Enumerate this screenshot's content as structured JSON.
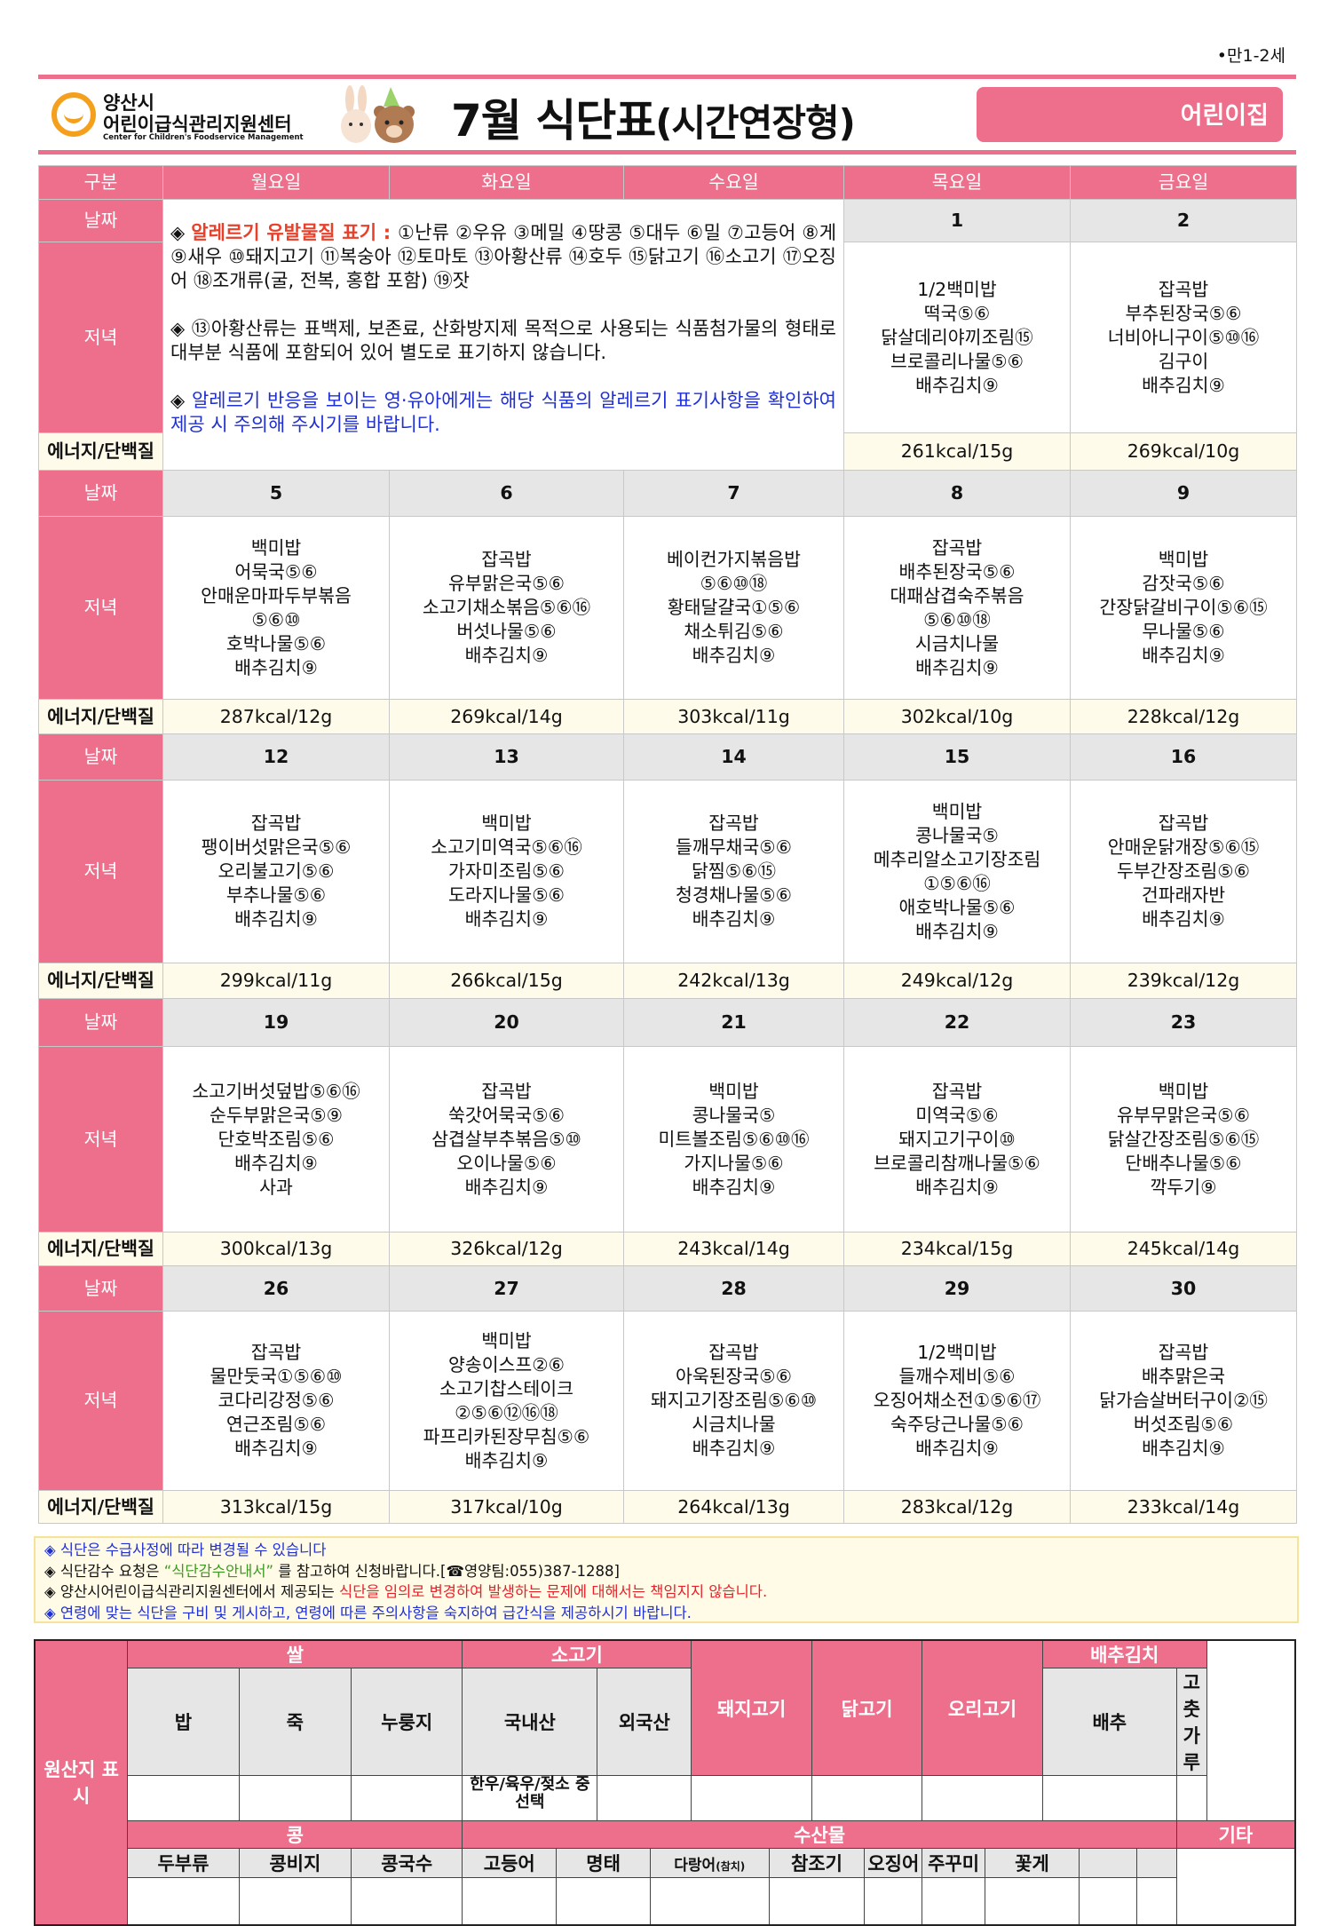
{
  "header": {
    "age": "•만1-2세",
    "org_name_1": "양산시",
    "org_name_2": "어린이급식관리지원센터",
    "org_name_en": "Center for Children's Foodservice Management",
    "title_main": "7월 식단표",
    "title_sub": "(시간연장형)",
    "badge": "어린이집",
    "accent": "#ee6f8c"
  },
  "table": {
    "columns": [
      "구분",
      "월요일",
      "화요일",
      "수요일",
      "목요일",
      "금요일"
    ],
    "row_labels": {
      "date": "날짜",
      "dinner": "저녁",
      "energy": "에너지/단백질"
    },
    "allergy": {
      "p1_prefix": "◈ ",
      "p1_label": "알레르기 유발물질 표기 : ",
      "p1_text": "①난류 ②우유 ③메밀 ④땅콩 ⑤대두 ⑥밀 ⑦고등어 ⑧게 ⑨새우 ⑩돼지고기 ⑪복숭아 ⑫토마토 ⑬아황산류 ⑭호두 ⑮닭고기 ⑯소고기 ⑰오징어 ⑱조개류(굴, 전복, 홍합 포함) ⑲잣",
      "p2": "◈ ⑬아황산류는 표백제, 보존료, 산화방지제 목적으로 사용되는 식품첨가물의 형태로 대부분 식품에 포함되어 있어 별도로 표기하지 않습니다.",
      "p3_prefix": "◈ ",
      "p3": "알레르기 반응을 보이는 영·유아에게는 해당 식품의 알레르기 표기사항을 확인하여 제공 시 주의해 주시기를 바랍니다."
    },
    "weeks": [
      {
        "days": [
          null,
          null,
          null,
          {
            "date": "1",
            "menu": [
              "1/2백미밥",
              "떡국⑤⑥",
              "닭살데리야끼조림⑮",
              "브로콜리나물⑤⑥",
              "배추김치⑨"
            ],
            "energy": "261kcal/15g"
          },
          {
            "date": "2",
            "menu": [
              "잡곡밥",
              "부추된장국⑤⑥",
              "너비아니구이⑤⑩⑯",
              "김구이",
              "배추김치⑨"
            ],
            "energy": "269kcal/10g"
          }
        ]
      },
      {
        "days": [
          {
            "date": "5",
            "menu": [
              "백미밥",
              "어묵국⑤⑥",
              "안매운마파두부볶음",
              "⑤⑥⑩",
              "호박나물⑤⑥",
              "배추김치⑨"
            ],
            "energy": "287kcal/12g"
          },
          {
            "date": "6",
            "menu": [
              "잡곡밥",
              "유부맑은국⑤⑥",
              "소고기채소볶음⑤⑥⑯",
              "버섯나물⑤⑥",
              "배추김치⑨"
            ],
            "energy": "269kcal/14g"
          },
          {
            "date": "7",
            "menu": [
              "베이컨가지볶음밥",
              "⑤⑥⑩⑱",
              "황태달걀국①⑤⑥",
              "채소튀김⑤⑥",
              "배추김치⑨"
            ],
            "energy": "303kcal/11g"
          },
          {
            "date": "8",
            "menu": [
              "잡곡밥",
              "배추된장국⑤⑥",
              "대패삼겹숙주볶음",
              "⑤⑥⑩⑱",
              "시금치나물",
              "배추김치⑨"
            ],
            "energy": "302kcal/10g"
          },
          {
            "date": "9",
            "menu": [
              "백미밥",
              "감잣국⑤⑥",
              "간장닭갈비구이⑤⑥⑮",
              "무나물⑤⑥",
              "배추김치⑨"
            ],
            "energy": "228kcal/12g"
          }
        ]
      },
      {
        "days": [
          {
            "date": "12",
            "menu": [
              "잡곡밥",
              "팽이버섯맑은국⑤⑥",
              "오리불고기⑤⑥",
              "부추나물⑤⑥",
              "배추김치⑨"
            ],
            "energy": "299kcal/11g"
          },
          {
            "date": "13",
            "menu": [
              "백미밥",
              "소고기미역국⑤⑥⑯",
              "가자미조림⑤⑥",
              "도라지나물⑤⑥",
              "배추김치⑨"
            ],
            "energy": "266kcal/15g"
          },
          {
            "date": "14",
            "menu": [
              "잡곡밥",
              "들깨무채국⑤⑥",
              "닭찜⑤⑥⑮",
              "청경채나물⑤⑥",
              "배추김치⑨"
            ],
            "energy": "242kcal/13g"
          },
          {
            "date": "15",
            "menu": [
              "백미밥",
              "콩나물국⑤",
              "메추리알소고기장조림",
              "①⑤⑥⑯",
              "애호박나물⑤⑥",
              "배추김치⑨"
            ],
            "energy": "249kcal/12g"
          },
          {
            "date": "16",
            "menu": [
              "잡곡밥",
              "안매운닭개장⑤⑥⑮",
              "두부간장조림⑤⑥",
              "건파래자반",
              "배추김치⑨"
            ],
            "energy": "239kcal/12g"
          }
        ]
      },
      {
        "days": [
          {
            "date": "19",
            "menu": [
              "소고기버섯덮밥⑤⑥⑯",
              "순두부맑은국⑤⑨",
              "단호박조림⑤⑥",
              "배추김치⑨",
              "사과"
            ],
            "energy": "300kcal/13g"
          },
          {
            "date": "20",
            "menu": [
              "잡곡밥",
              "쑥갓어묵국⑤⑥",
              "삼겹살부추볶음⑤⑩",
              "오이나물⑤⑥",
              "배추김치⑨"
            ],
            "energy": "326kcal/12g"
          },
          {
            "date": "21",
            "menu": [
              "백미밥",
              "콩나물국⑤",
              "미트볼조림⑤⑥⑩⑯",
              "가지나물⑤⑥",
              "배추김치⑨"
            ],
            "energy": "243kcal/14g"
          },
          {
            "date": "22",
            "menu": [
              "잡곡밥",
              "미역국⑤⑥",
              "돼지고기구이⑩",
              "브로콜리참깨나물⑤⑥",
              "배추김치⑨"
            ],
            "energy": "234kcal/15g"
          },
          {
            "date": "23",
            "menu": [
              "백미밥",
              "유부무맑은국⑤⑥",
              "닭살간장조림⑤⑥⑮",
              "단배추나물⑤⑥",
              "깍두기⑨"
            ],
            "energy": "245kcal/14g"
          }
        ]
      },
      {
        "days": [
          {
            "date": "26",
            "menu": [
              "잡곡밥",
              "물만둣국①⑤⑥⑩",
              "코다리강정⑤⑥",
              "연근조림⑤⑥",
              "배추김치⑨"
            ],
            "energy": "313kcal/15g"
          },
          {
            "date": "27",
            "menu": [
              "백미밥",
              "양송이스프②⑥",
              "소고기찹스테이크",
              "②⑤⑥⑫⑯⑱",
              "파프리카된장무침⑤⑥",
              "배추김치⑨"
            ],
            "energy": "317kcal/10g"
          },
          {
            "date": "28",
            "menu": [
              "잡곡밥",
              "아욱된장국⑤⑥",
              "돼지고기장조림⑤⑥⑩",
              "시금치나물",
              "배추김치⑨"
            ],
            "energy": "264kcal/13g"
          },
          {
            "date": "29",
            "menu": [
              "1/2백미밥",
              "들깨수제비⑤⑥",
              "오징어채소전①⑤⑥⑰",
              "숙주당근나물⑤⑥",
              "배추김치⑨"
            ],
            "energy": "283kcal/12g"
          },
          {
            "date": "30",
            "menu": [
              "잡곡밥",
              "배추맑은국",
              "닭가슴살버터구이②⑮",
              "버섯조림⑤⑥",
              "배추김치⑨"
            ],
            "energy": "233kcal/14g"
          }
        ]
      }
    ]
  },
  "notes": {
    "n1": "◈ 식단은 수급사정에 따라 변경될 수 있습니다",
    "n2_a": "◈ 식단감수 요청은 ",
    "n2_b": "“식단감수안내서”",
    "n2_c": " 를 참고하여 신청바랍니다.[☎영양팀:055)387-1288]",
    "n3_a": "◈ 양산시어린이급식관리지원센터에서 제공되는 ",
    "n3_b": "식단을 임의로 변경하여 발생하는 문제에 대해서는 책임지지 않습니다.",
    "n4": "◈ 연령에 맞는 식단을 구비 및 게시하고, 연령에 따른 주의사항을 숙지하여 급간식을 제공하시기 바랍니다."
  },
  "origin": {
    "label": "원산지 표시",
    "groups1": [
      "쌀",
      "소고기",
      "돼지고기",
      "닭고기",
      "오리고기",
      "배추김치"
    ],
    "sub1": [
      "밥",
      "죽",
      "누룽지",
      "국내산",
      "외국산",
      "배추",
      "고춧가루"
    ],
    "beef_domestic_value": "한우/육우/젖소 중 선택",
    "groups2": [
      "콩",
      "수산물",
      "기타"
    ],
    "sub2": [
      "두부류",
      "콩비지",
      "콩국수",
      "고등어",
      "명태",
      "다랑어",
      "(참치)",
      "참조기",
      "오징어",
      "주꾸미",
      "꽃게"
    ]
  }
}
